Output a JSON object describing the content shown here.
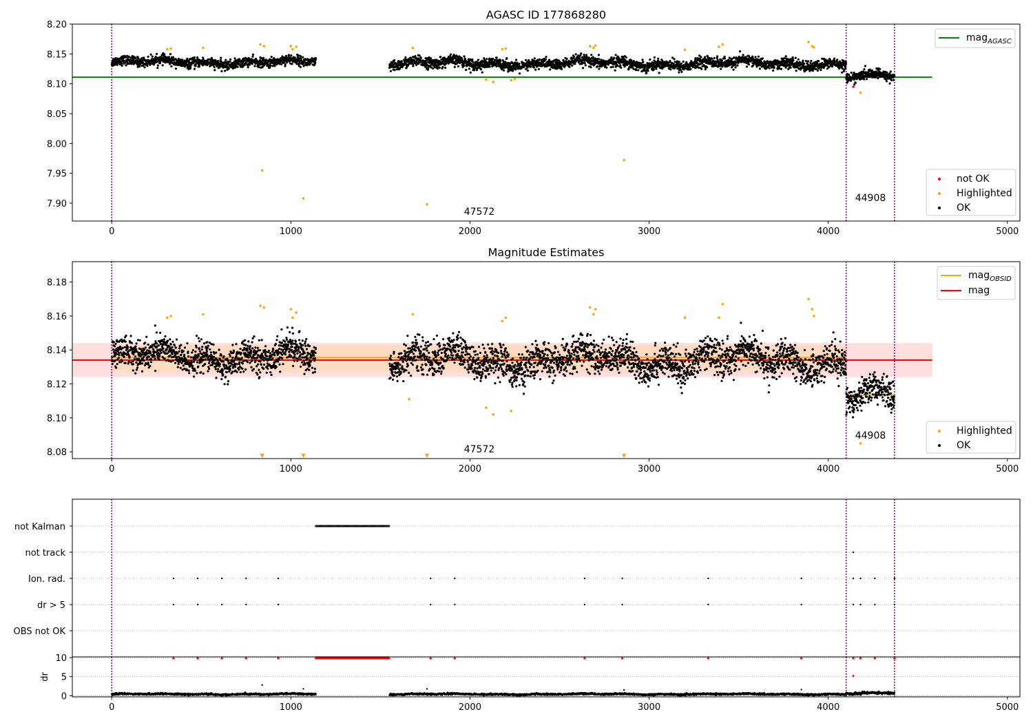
{
  "chart_data": [
    {
      "type": "scatter",
      "title": "AGASC ID 177868280",
      "xlabel": "",
      "ylabel": "",
      "xlim": [
        -220,
        5070
      ],
      "ylim": [
        7.87,
        8.2
      ],
      "xticks": [
        0,
        1000,
        2000,
        3000,
        4000,
        5000
      ],
      "yticks": [
        7.9,
        7.95,
        8.0,
        8.05,
        8.1,
        8.15,
        8.2
      ],
      "ytick_labels": [
        "7.90",
        "7.95",
        "8.00",
        "8.05",
        "8.10",
        "8.15",
        "8.20"
      ],
      "grid": false,
      "legend_top": {
        "position": "top-right",
        "entries": [
          {
            "label": "mag",
            "subscript": "AGASC",
            "color": "#008000",
            "marker": "line"
          }
        ]
      },
      "legend_bottom": {
        "position": "bottom-right",
        "entries": [
          {
            "label": "not OK",
            "color": "#ff0000",
            "marker": "dot"
          },
          {
            "label": "Highlighted",
            "color": "#ffa500",
            "marker": "dot"
          },
          {
            "label": "OK",
            "color": "#000000",
            "marker": "dot"
          }
        ]
      },
      "hlines": [
        {
          "name": "mag_AGASC",
          "y": 8.111,
          "x": [
            -220,
            4580
          ],
          "color": "#008000"
        }
      ],
      "vlines": [
        0,
        4100,
        4370
      ],
      "vline_color": "#800080",
      "obsid_labels": [
        {
          "text": "47572",
          "x": 2050,
          "y": 7.882
        },
        {
          "text": "44908",
          "x": 4240,
          "y": 7.905
        }
      ],
      "series": [
        {
          "name": "OK",
          "color": "#000000",
          "segments": [
            {
              "x": [
                0,
                1140
              ],
              "center": 8.136,
              "spread": 0.007
            },
            {
              "x": [
                1550,
                4100
              ],
              "center": 8.134,
              "spread": 0.008
            },
            {
              "x": [
                4100,
                4370
              ],
              "center": 8.112,
              "spread": 0.007
            }
          ]
        },
        {
          "name": "Highlighted",
          "color": "#ffa500",
          "points": [
            [
              310,
              8.158
            ],
            [
              330,
              8.159
            ],
            [
              510,
              8.16
            ],
            [
              830,
              8.166
            ],
            [
              850,
              8.163
            ],
            [
              1000,
              8.163
            ],
            [
              1010,
              8.158
            ],
            [
              1030,
              8.162
            ],
            [
              1680,
              8.16
            ],
            [
              2090,
              8.107
            ],
            [
              2130,
              8.103
            ],
            [
              2180,
              8.158
            ],
            [
              2200,
              8.159
            ],
            [
              2230,
              8.106
            ],
            [
              2250,
              8.108
            ],
            [
              2670,
              8.163
            ],
            [
              2690,
              8.16
            ],
            [
              2700,
              8.164
            ],
            [
              3200,
              8.157
            ],
            [
              3390,
              8.162
            ],
            [
              3410,
              8.166
            ],
            [
              3890,
              8.17
            ],
            [
              3910,
              8.163
            ],
            [
              3920,
              8.161
            ],
            [
              4180,
              8.085
            ],
            [
              840,
              7.955
            ],
            [
              1070,
              7.908
            ],
            [
              1760,
              7.898
            ],
            [
              2860,
              7.972
            ]
          ]
        },
        {
          "name": "not OK",
          "color": "#ff0000",
          "points": [
            [
              4140,
              8.095
            ]
          ]
        }
      ]
    },
    {
      "type": "scatter",
      "title": "Magnitude Estimates",
      "xlabel": "",
      "ylabel": "",
      "xlim": [
        -220,
        5070
      ],
      "ylim": [
        8.076,
        8.192
      ],
      "xticks": [
        0,
        1000,
        2000,
        3000,
        4000,
        5000
      ],
      "yticks": [
        8.08,
        8.1,
        8.12,
        8.14,
        8.16,
        8.18
      ],
      "ytick_labels": [
        "8.08",
        "8.10",
        "8.12",
        "8.14",
        "8.16",
        "8.18"
      ],
      "grid": false,
      "legend_top": {
        "position": "top-right",
        "entries": [
          {
            "label": "mag",
            "subscript": "OBSID",
            "color": "#ffa500",
            "marker": "line"
          },
          {
            "label": "mag",
            "color": "#ff0000",
            "marker": "line"
          }
        ]
      },
      "legend_bottom": {
        "position": "bottom-right",
        "entries": [
          {
            "label": "Highlighted",
            "color": "#ffa500",
            "marker": "dot"
          },
          {
            "label": "OK",
            "color": "#000000",
            "marker": "dot"
          }
        ]
      },
      "bands": [
        {
          "name": "mag range",
          "y": [
            8.124,
            8.144
          ],
          "x": [
            -220,
            4580
          ],
          "color": "#ffcccc"
        },
        {
          "name": "obsid range",
          "y": [
            8.127,
            8.143
          ],
          "x": [
            0,
            4100
          ],
          "color": "#ffd8b0"
        }
      ],
      "hlines": [
        {
          "name": "mag",
          "y": 8.134,
          "x": [
            -220,
            4580
          ],
          "color": "#ff0000"
        },
        {
          "name": "mag_OBSID",
          "y": 8.1355,
          "x": [
            0,
            4100
          ],
          "color": "#ffa500"
        },
        {
          "name": "mag_OBSID_44908",
          "y": 8.1135,
          "x": [
            4100,
            4370
          ],
          "color": "#ffa500"
        }
      ],
      "vlines": [
        0,
        4100,
        4370
      ],
      "vline_color": "#800080",
      "obsid_labels": [
        {
          "text": "47572",
          "x": 2050,
          "y": 8.0795
        },
        {
          "text": "44908",
          "x": 4240,
          "y": 8.0885
        }
      ],
      "series": [
        {
          "name": "OK",
          "color": "#000000",
          "segments": [
            {
              "x": [
                0,
                1140
              ],
              "center": 8.136,
              "spread": 0.008
            },
            {
              "x": [
                1550,
                4100
              ],
              "center": 8.134,
              "spread": 0.009
            },
            {
              "x": [
                4100,
                4370
              ],
              "center": 8.113,
              "spread": 0.008
            }
          ]
        },
        {
          "name": "Highlighted",
          "color": "#ffa500",
          "points": [
            [
              310,
              8.159
            ],
            [
              330,
              8.16
            ],
            [
              510,
              8.161
            ],
            [
              830,
              8.166
            ],
            [
              850,
              8.165
            ],
            [
              1000,
              8.164
            ],
            [
              1010,
              8.159
            ],
            [
              1030,
              8.162
            ],
            [
              1680,
              8.161
            ],
            [
              1660,
              8.111
            ],
            [
              2090,
              8.106
            ],
            [
              2130,
              8.102
            ],
            [
              2180,
              8.157
            ],
            [
              2200,
              8.159
            ],
            [
              2230,
              8.104
            ],
            [
              2670,
              8.165
            ],
            [
              2690,
              8.161
            ],
            [
              2700,
              8.164
            ],
            [
              3200,
              8.159
            ],
            [
              3390,
              8.159
            ],
            [
              3410,
              8.167
            ],
            [
              3890,
              8.17
            ],
            [
              3910,
              8.164
            ],
            [
              3920,
              8.16
            ],
            [
              4180,
              8.085
            ]
          ]
        },
        {
          "name": "Highlighted (off-scale)",
          "color": "#ffa500",
          "marker": "triangle-down",
          "points": [
            [
              840,
              8.077
            ],
            [
              1070,
              8.077
            ],
            [
              1760,
              8.077
            ],
            [
              2860,
              8.077
            ]
          ]
        }
      ]
    },
    {
      "type": "scatter",
      "title": "",
      "xlabel": "",
      "ylabel": "",
      "xlim": [
        -220,
        5070
      ],
      "xticks": [
        0,
        1000,
        2000,
        3000,
        4000,
        5000
      ],
      "categories": [
        "not Kalman",
        "not track",
        "Ion. rad.",
        "dr > 5",
        "OBS not OK"
      ],
      "grid": true,
      "vlines": [
        0,
        4100,
        4370
      ],
      "vline_color": "#800080",
      "series": [
        {
          "name": "not Kalman",
          "color": "#000000",
          "x_range": [
            1140,
            1550
          ]
        },
        {
          "name": "not track",
          "color": "#000000",
          "x": [
            4140
          ]
        },
        {
          "name": "Ion. rad.",
          "color": "#000000",
          "x": [
            345,
            480,
            615,
            750,
            930,
            1780,
            1915,
            2640,
            2850,
            3330,
            3850,
            4140,
            4180,
            4260,
            4370
          ]
        },
        {
          "name": "dr > 5",
          "color": "#000000",
          "x": [
            345,
            480,
            615,
            750,
            930,
            1780,
            1915,
            2640,
            2850,
            3330,
            3850,
            4140,
            4180,
            4260,
            4370
          ]
        },
        {
          "name": "OBS not OK",
          "color": "#000000",
          "x": []
        }
      ]
    },
    {
      "type": "scatter",
      "title": "",
      "xlabel": "",
      "ylabel": "dr",
      "xlim": [
        -220,
        5070
      ],
      "ylim": [
        -0.3,
        10.2
      ],
      "xticks": [
        0,
        1000,
        2000,
        3000,
        4000,
        5000
      ],
      "yticks": [
        0,
        5,
        10
      ],
      "ytick_labels": [
        "0",
        "5",
        "10"
      ],
      "grid": true,
      "vlines": [
        0,
        4100,
        4370
      ],
      "vline_color": "#800080",
      "series": [
        {
          "name": "dr",
          "color": "#000000",
          "segments": [
            {
              "x": [
                0,
                1140
              ],
              "center": 0.4,
              "spread": 0.2
            },
            {
              "x": [
                1550,
                4100
              ],
              "center": 0.4,
              "spread": 0.2
            },
            {
              "x": [
                4100,
                4370
              ],
              "center": 0.6,
              "spread": 0.3
            }
          ],
          "points": [
            [
              840,
              2.8
            ],
            [
              1070,
              1.8
            ],
            [
              1760,
              1.8
            ],
            [
              2860,
              1.5
            ],
            [
              3850,
              1.6
            ]
          ]
        },
        {
          "name": "dr > 5 (capped)",
          "color": "#ff0000",
          "marker": "triangle-up",
          "x_range": [
            1140,
            1550
          ],
          "x": [
            345,
            480,
            615,
            750,
            930,
            1780,
            1915,
            2640,
            2850,
            3330,
            3850,
            4140,
            4180,
            4260,
            4370
          ],
          "y": 10
        },
        {
          "name": "dr point",
          "color": "#ff0000",
          "points": [
            [
              4140,
              5.2
            ]
          ]
        }
      ]
    }
  ]
}
